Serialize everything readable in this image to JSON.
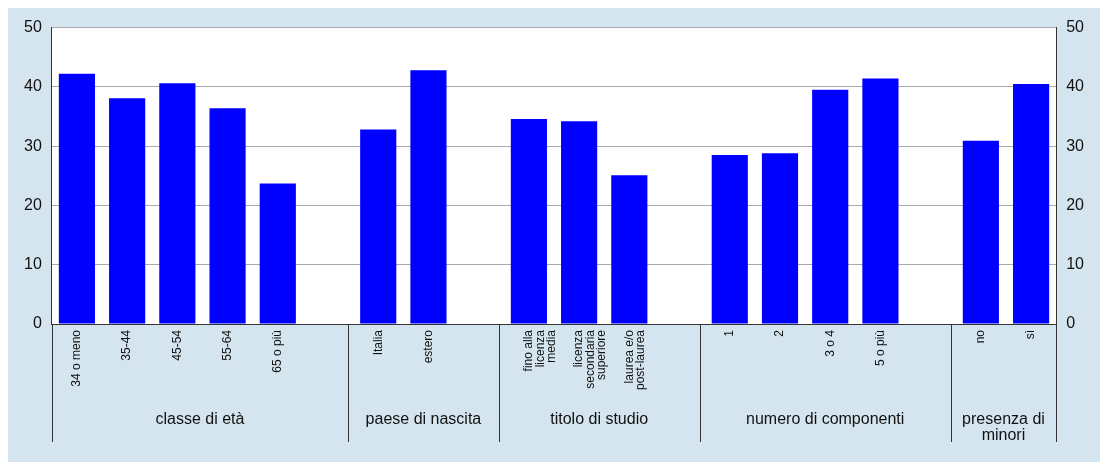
{
  "chart_data": {
    "type": "bar",
    "categories": [
      "34 o meno",
      "35-44",
      "45-54",
      "55-64",
      "65 o più",
      null,
      "Italia",
      "estero",
      null,
      "fino alla licenza media",
      "licenza secondaria superiore",
      "laurea e/o post-laurea",
      null,
      "1",
      "2",
      "3 o 4",
      "5 o più",
      null,
      "no",
      "sì"
    ],
    "values": [
      42.2,
      38.1,
      40.6,
      36.4,
      23.7,
      null,
      32.8,
      42.8,
      null,
      34.6,
      34.2,
      25.1,
      null,
      28.5,
      28.8,
      39.5,
      41.4,
      null,
      30.9,
      40.5
    ],
    "color": "#0000ff",
    "ylim": [
      0,
      50
    ],
    "yticks": [
      0,
      10,
      20,
      30,
      40,
      50
    ],
    "y2lim": [
      0,
      50
    ],
    "y2ticks": [
      0,
      10,
      20,
      30,
      40,
      50
    ],
    "grid": "y",
    "annotations": [
      "classe di età",
      "paese di nascita",
      "titolo di studio",
      "numero di componenti",
      "presenza di minori"
    ]
  }
}
